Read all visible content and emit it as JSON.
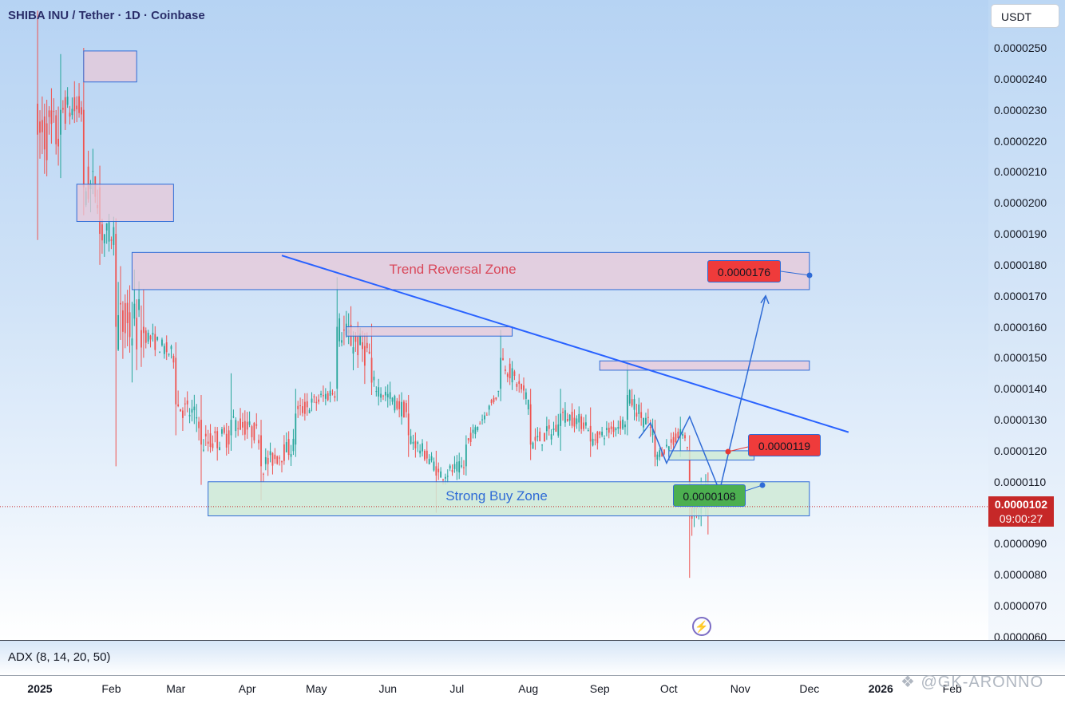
{
  "header": {
    "title": "SHIBA INU / Tether · 1D · Coinbase"
  },
  "price_axis": {
    "currency": "USDT",
    "ticks": [
      "0.0000250",
      "0.0000240",
      "0.0000230",
      "0.0000220",
      "0.0000210",
      "0.0000200",
      "0.0000190",
      "0.0000180",
      "0.0000170",
      "0.0000160",
      "0.0000150",
      "0.0000140",
      "0.0000130",
      "0.0000120",
      "0.0000110",
      "0.0000100",
      "0.0000090",
      "0.0000080",
      "0.0000070",
      "0.0000060"
    ],
    "last_price": "0.0000102",
    "countdown": "09:00:27"
  },
  "indicator": {
    "label": "ADX (8, 14, 20, 50)"
  },
  "time_axis": {
    "labels": [
      "2025",
      "Feb",
      "Mar",
      "Apr",
      "May",
      "Jun",
      "Jul",
      "Aug",
      "Sep",
      "Oct",
      "Nov",
      "Dec",
      "2026",
      "Feb"
    ]
  },
  "watermark": "GK-ARONNO",
  "annotations": {
    "trend_reversal_zone": "Trend Reversal Zone",
    "strong_buy_zone": "Strong Buy Zone",
    "target_high": "0.0000176",
    "target_mid": "0.0000119",
    "entry": "0.0000108"
  },
  "colors": {
    "bull": "#26a69a",
    "bear": "#ef5350",
    "trendline": "#2962ff",
    "resistance_zone": "#e8c8d8",
    "support_zone": "#cfead6",
    "last_price_badge": "#c62828"
  },
  "chart_data": {
    "type": "candlestick",
    "title": "SHIBA INU / Tether · 1D · Coinbase",
    "y_unit": "USDT",
    "ylim": [
      5.8e-06,
      2.62e-05
    ],
    "x_range": [
      "2024-12-31",
      "2026-02-10"
    ],
    "candles_approx": [
      {
        "date": "2024-12-31",
        "o": 2.32e-05,
        "h": 2.62e-05,
        "l": 1.88e-05,
        "c": 2.22e-05
      },
      {
        "date": "2025-01-10",
        "o": 2.22e-05,
        "h": 2.48e-05,
        "l": 2.08e-05,
        "c": 2.3e-05
      },
      {
        "date": "2025-01-20",
        "o": 2.3e-05,
        "h": 2.5e-05,
        "l": 1.96e-05,
        "c": 2.05e-05
      },
      {
        "date": "2025-01-27",
        "o": 2.05e-05,
        "h": 2.12e-05,
        "l": 1.8e-05,
        "c": 1.9e-05
      },
      {
        "date": "2025-02-03",
        "o": 1.9e-05,
        "h": 1.95e-05,
        "l": 1.15e-05,
        "c": 1.6e-05
      },
      {
        "date": "2025-02-15",
        "o": 1.6e-05,
        "h": 1.72e-05,
        "l": 1.5e-05,
        "c": 1.58e-05
      },
      {
        "date": "2025-03-01",
        "o": 1.5e-05,
        "h": 1.55e-05,
        "l": 1.25e-05,
        "c": 1.35e-05
      },
      {
        "date": "2025-03-12",
        "o": 1.3e-05,
        "h": 1.38e-05,
        "l": 1.09e-05,
        "c": 1.22e-05
      },
      {
        "date": "2025-03-25",
        "o": 1.25e-05,
        "h": 1.45e-05,
        "l": 1.2e-05,
        "c": 1.3e-05
      },
      {
        "date": "2025-04-07",
        "o": 1.25e-05,
        "h": 1.3e-05,
        "l": 1.04e-05,
        "c": 1.15e-05
      },
      {
        "date": "2025-04-22",
        "o": 1.22e-05,
        "h": 1.4e-05,
        "l": 1.18e-05,
        "c": 1.32e-05
      },
      {
        "date": "2025-05-10",
        "o": 1.4e-05,
        "h": 1.76e-05,
        "l": 1.36e-05,
        "c": 1.6e-05
      },
      {
        "date": "2025-05-25",
        "o": 1.5e-05,
        "h": 1.61e-05,
        "l": 1.38e-05,
        "c": 1.42e-05
      },
      {
        "date": "2025-06-10",
        "o": 1.32e-05,
        "h": 1.38e-05,
        "l": 1.18e-05,
        "c": 1.25e-05
      },
      {
        "date": "2025-06-22",
        "o": 1.15e-05,
        "h": 1.2e-05,
        "l": 1e-05,
        "c": 1.12e-05
      },
      {
        "date": "2025-07-05",
        "o": 1.15e-05,
        "h": 1.25e-05,
        "l": 1.12e-05,
        "c": 1.22e-05
      },
      {
        "date": "2025-07-20",
        "o": 1.4e-05,
        "h": 1.59e-05,
        "l": 1.36e-05,
        "c": 1.5e-05
      },
      {
        "date": "2025-08-02",
        "o": 1.35e-05,
        "h": 1.4e-05,
        "l": 1.17e-05,
        "c": 1.22e-05
      },
      {
        "date": "2025-08-15",
        "o": 1.28e-05,
        "h": 1.4e-05,
        "l": 1.2e-05,
        "c": 1.32e-05
      },
      {
        "date": "2025-08-28",
        "o": 1.28e-05,
        "h": 1.34e-05,
        "l": 1.18e-05,
        "c": 1.23e-05
      },
      {
        "date": "2025-09-13",
        "o": 1.3e-05,
        "h": 1.48e-05,
        "l": 1.25e-05,
        "c": 1.38e-05
      },
      {
        "date": "2025-09-25",
        "o": 1.25e-05,
        "h": 1.3e-05,
        "l": 1.15e-05,
        "c": 1.18e-05
      },
      {
        "date": "2025-10-06",
        "o": 1.25e-05,
        "h": 1.31e-05,
        "l": 1.18e-05,
        "c": 1.27e-05
      },
      {
        "date": "2025-10-10",
        "o": 1.2e-05,
        "h": 1.25e-05,
        "l": 7.9e-06,
        "c": 1.02e-05
      },
      {
        "date": "2025-10-18",
        "o": 1.05e-05,
        "h": 1.13e-05,
        "l": 9.3e-06,
        "c": 1.02e-05
      }
    ],
    "zones": [
      {
        "kind": "resistance",
        "from": "2025-01-20",
        "to": "2025-02-12",
        "low": 2.39e-05,
        "high": 2.49e-05
      },
      {
        "kind": "resistance",
        "from": "2025-01-17",
        "to": "2025-02-28",
        "low": 1.94e-05,
        "high": 2.06e-05
      },
      {
        "kind": "resistance",
        "label": "Trend Reversal Zone",
        "from": "2025-02-10",
        "to": "2025-12-01",
        "low": 1.72e-05,
        "high": 1.84e-05
      },
      {
        "kind": "resistance",
        "from": "2025-05-14",
        "to": "2025-07-25",
        "low": 1.57e-05,
        "high": 1.6e-05
      },
      {
        "kind": "resistance",
        "from": "2025-09-01",
        "to": "2025-12-01",
        "low": 1.46e-05,
        "high": 1.49e-05
      },
      {
        "kind": "support",
        "label": "Strong Buy Zone",
        "from": "2025-03-15",
        "to": "2025-12-01",
        "low": 9.9e-06,
        "high": 1.1e-05
      },
      {
        "kind": "support",
        "from": "2025-10-01",
        "to": "2025-11-07",
        "low": 1.17e-05,
        "high": 1.2e-05
      }
    ],
    "trendline": [
      {
        "date": "2025-04-16",
        "price": 1.83e-05
      },
      {
        "date": "2025-12-18",
        "price": 1.26e-05
      }
    ],
    "projection_path": [
      {
        "date": "2025-09-18",
        "price": 1.24e-05
      },
      {
        "date": "2025-09-23",
        "price": 1.29e-05
      },
      {
        "date": "2025-09-30",
        "price": 1.16e-05
      },
      {
        "date": "2025-10-10",
        "price": 1.31e-05
      },
      {
        "date": "2025-10-23",
        "price": 1.07e-05
      },
      {
        "date": "2025-11-12",
        "price": 1.7e-05
      }
    ],
    "labels": [
      {
        "text": "0.0000176",
        "price": 1.76e-05,
        "color": "#e53935"
      },
      {
        "text": "0.0000119",
        "price": 1.19e-05,
        "color": "#e53935"
      },
      {
        "text": "0.0000108",
        "price": 1.08e-05,
        "color": "#43a047"
      }
    ],
    "last_price": 1.02e-05
  }
}
